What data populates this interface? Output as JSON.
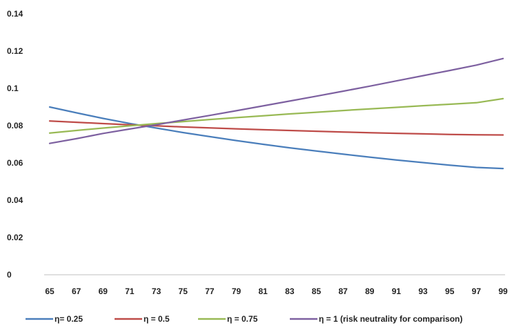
{
  "chart_data": {
    "type": "line",
    "title": "",
    "xlabel": "",
    "ylabel": "",
    "x": [
      65,
      67,
      69,
      71,
      73,
      75,
      77,
      79,
      81,
      83,
      85,
      87,
      89,
      91,
      93,
      95,
      97,
      99
    ],
    "ylim": [
      0,
      0.14
    ],
    "yticks": [
      0,
      0.02,
      0.04,
      0.06,
      0.08,
      0.1,
      0.12,
      0.14
    ],
    "ytick_labels": [
      "0",
      "0.02",
      "0.04",
      "0.06",
      "0.08",
      "0.1",
      "0.12",
      "0.14"
    ],
    "grid": false,
    "legend_position": "bottom",
    "series": [
      {
        "name": "η= 0.25",
        "color": "#4a7ebb",
        "values": [
          0.09,
          0.0869,
          0.0839,
          0.0812,
          0.0787,
          0.0763,
          0.0741,
          0.072,
          0.07,
          0.0681,
          0.0664,
          0.0647,
          0.0631,
          0.0616,
          0.0602,
          0.0588,
          0.0576,
          0.057
        ]
      },
      {
        "name": "η = 0.5",
        "color": "#be4b48",
        "values": [
          0.0825,
          0.0818,
          0.0811,
          0.0805,
          0.0799,
          0.0793,
          0.0788,
          0.0783,
          0.0778,
          0.0774,
          0.077,
          0.0766,
          0.0762,
          0.0759,
          0.0756,
          0.0753,
          0.0751,
          0.075
        ]
      },
      {
        "name": "η = 0.75",
        "color": "#98b954",
        "values": [
          0.076,
          0.0774,
          0.0787,
          0.0799,
          0.0811,
          0.0822,
          0.0833,
          0.0843,
          0.0853,
          0.0863,
          0.0872,
          0.0881,
          0.089,
          0.0898,
          0.0907,
          0.0915,
          0.0923,
          0.0945
        ]
      },
      {
        "name": "η = 1 (risk neutrality for comparison)",
        "color": "#7d60a0",
        "values": [
          0.0705,
          0.073,
          0.0758,
          0.0782,
          0.0805,
          0.083,
          0.0855,
          0.088,
          0.0906,
          0.0932,
          0.0958,
          0.0985,
          0.1012,
          0.104,
          0.1068,
          0.1096,
          0.1125,
          0.116
        ]
      }
    ]
  }
}
